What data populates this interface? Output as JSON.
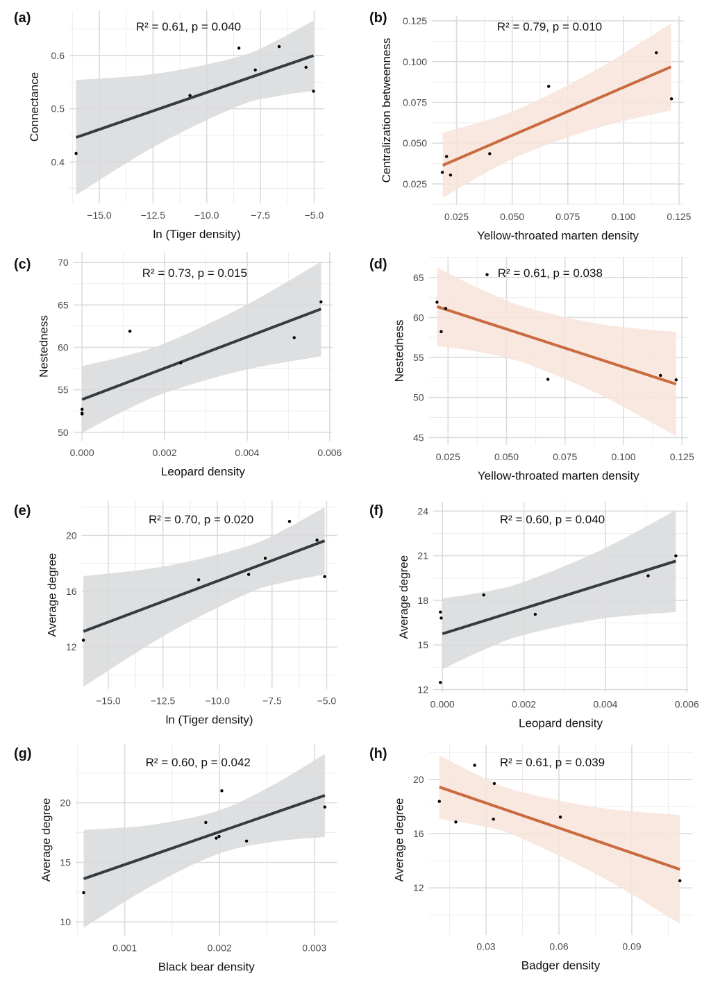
{
  "chart_data": [
    {
      "panel": "(a)",
      "type": "scatter",
      "annotation": "R² = 0.61, p = 0.040",
      "xlabel": "ln (Tiger density)",
      "ylabel": "Connectance",
      "xlim": [
        -16.39,
        -4.53
      ],
      "ylim": [
        0.322,
        0.685
      ],
      "x_ticks": [
        -15,
        -12.5,
        -10,
        -7.5,
        -5
      ],
      "x_tick_labels": [
        "−15.0",
        "−12.5",
        "−10.0",
        "−7.5",
        "−5.0"
      ],
      "y_ticks": [
        0.4,
        0.5,
        0.6
      ],
      "y_tick_labels": [
        "0.4",
        "0.5",
        "0.6"
      ],
      "points": [
        [
          -16.08,
          0.416
        ],
        [
          -10.78,
          0.525
        ],
        [
          -8.5,
          0.614
        ],
        [
          -7.74,
          0.573
        ],
        [
          -6.63,
          0.617
        ],
        [
          -5.38,
          0.578
        ],
        [
          -5.03,
          0.533
        ]
      ],
      "fit_line": {
        "x": [
          -16.08,
          -5.03
        ],
        "y": [
          0.446,
          0.6
        ]
      },
      "ci_band": {
        "x": [
          -16.08,
          -12.34,
          -8.59,
          -6.81,
          -5.03
        ],
        "lower": [
          0.338,
          0.431,
          0.504,
          0.523,
          0.534
        ],
        "upper": [
          0.554,
          0.566,
          0.597,
          0.627,
          0.666
        ]
      },
      "line_color": "#363b40",
      "band_color": "#d8d9da",
      "grid": true
    },
    {
      "panel": "(b)",
      "type": "scatter",
      "annotation": "R² = 0.79, p = 0.010",
      "xlabel": "Yellow-throated marten density",
      "ylabel": "Centralization betweenness",
      "xlim": [
        0.0139,
        0.1272
      ],
      "ylim": [
        0.0122,
        0.128
      ],
      "x_ticks": [
        0.025,
        0.05,
        0.075,
        0.1,
        0.125
      ],
      "x_tick_labels": [
        "0.025",
        "0.050",
        "0.075",
        "0.100",
        "0.125"
      ],
      "y_ticks": [
        0.025,
        0.05,
        0.075,
        0.1,
        0.125
      ],
      "y_tick_labels": [
        "0.025",
        "0.050",
        "0.075",
        "0.100",
        "0.125"
      ],
      "points": [
        [
          0.0186,
          0.0321
        ],
        [
          0.0205,
          0.0418
        ],
        [
          0.0223,
          0.0304
        ],
        [
          0.0399,
          0.0435
        ],
        [
          0.0664,
          0.0848
        ],
        [
          0.1148,
          0.1054
        ],
        [
          0.1216,
          0.0772
        ]
      ],
      "fit_line": {
        "x": [
          0.0188,
          0.1214
        ],
        "y": [
          0.0364,
          0.0968
        ]
      },
      "ci_band": {
        "x": [
          0.0188,
          0.03825,
          0.0577,
          0.08955,
          0.1214
        ],
        "lower": [
          0.0164,
          0.0319,
          0.0448,
          0.0598,
          0.0701
        ],
        "upper": [
          0.0564,
          0.0639,
          0.0738,
          0.0964,
          0.1235
        ]
      },
      "line_color": "#c96a3f",
      "band_color": "#f7e4da",
      "grid": true
    },
    {
      "panel": "(c)",
      "type": "scatter",
      "annotation": "R² = 0.73, p = 0.015",
      "xlabel": "Leopard density",
      "ylabel": "Nestedness",
      "xlim": [
        -0.00021,
        0.00607
      ],
      "ylim": [
        49.0,
        71.24
      ],
      "x_ticks": [
        0,
        0.002,
        0.004,
        0.006
      ],
      "x_tick_labels": [
        "0.000",
        "0.002",
        "0.004",
        "0.006"
      ],
      "y_ticks": [
        50,
        55,
        60,
        65,
        70
      ],
      "y_tick_labels": [
        "50",
        "55",
        "60",
        "65",
        "70"
      ],
      "points": [
        [
          0,
          52.7
        ],
        [
          0,
          52.25
        ],
        [
          0,
          52.15
        ],
        [
          0.00116,
          61.9
        ],
        [
          0.00239,
          58.17
        ],
        [
          0.00514,
          61.15
        ],
        [
          0.00579,
          65.36
        ]
      ],
      "fit_line": {
        "x": [
          0,
          0.00579
        ],
        "y": [
          53.86,
          64.52
        ]
      },
      "ci_band": {
        "x": [
          0,
          0.001035,
          0.00207,
          0.00393,
          0.00579
        ],
        "lower": [
          49.92,
          52.56,
          54.74,
          57.33,
          58.95
        ],
        "upper": [
          57.8,
          58.98,
          60.6,
          64.87,
          70.09
        ]
      },
      "line_color": "#363b40",
      "band_color": "#d8d9da",
      "grid": true
    },
    {
      "panel": "(d)",
      "type": "scatter",
      "annotation": "R² = 0.61, p = 0.038",
      "xlabel": "Yellow-throated marten density",
      "ylabel": "Nestedness",
      "xlim": [
        0.0168,
        0.1276
      ],
      "ylim": [
        44.08,
        67.58
      ],
      "x_ticks": [
        0.025,
        0.05,
        0.075,
        0.1,
        0.125
      ],
      "x_tick_labels": [
        "0.025",
        "0.050",
        "0.075",
        "0.100",
        "0.125"
      ],
      "y_ticks": [
        45,
        50,
        55,
        60,
        65
      ],
      "y_tick_labels": [
        "45",
        "50",
        "55",
        "60",
        "65"
      ],
      "points": [
        [
          0.0203,
          61.91
        ],
        [
          0.024,
          61.14
        ],
        [
          0.0221,
          58.23
        ],
        [
          0.0417,
          65.35
        ],
        [
          0.0677,
          52.27
        ],
        [
          0.1158,
          52.76
        ],
        [
          0.1225,
          52.21
        ]
      ],
      "fit_line": {
        "x": [
          0.0203,
          0.1225
        ],
        "y": [
          61.36,
          51.68
        ]
      },
      "ci_band": {
        "x": [
          0.0203,
          0.03975,
          0.0592,
          0.09085,
          0.1225
        ],
        "lower": [
          56.47,
          55.6,
          54.14,
          50.21,
          45.16
        ],
        "upper": [
          66.25,
          63.44,
          61.22,
          59.15,
          58.2
        ]
      },
      "line_color": "#c96a3f",
      "band_color": "#f7e4da",
      "grid": true
    },
    {
      "panel": "(e)",
      "type": "scatter",
      "annotation": "R² = 0.70, p = 0.020",
      "xlabel": "ln (Tiger density)",
      "ylabel": "Average degree",
      "xlim": [
        -16.22,
        -4.52
      ],
      "ylim": [
        9.0,
        22.47
      ],
      "x_ticks": [
        -15,
        -12.5,
        -10,
        -7.5,
        -5
      ],
      "x_tick_labels": [
        "−15.0",
        "−12.5",
        "−10.0",
        "−7.5",
        "−5.0"
      ],
      "y_ticks": [
        12,
        16,
        20
      ],
      "y_tick_labels": [
        "12",
        "16",
        "20"
      ],
      "points": [
        [
          -16.14,
          12.49
        ],
        [
          -10.86,
          16.82
        ],
        [
          -8.57,
          17.2
        ],
        [
          -7.81,
          18.36
        ],
        [
          -6.7,
          21.0
        ],
        [
          -5.44,
          19.66
        ],
        [
          -5.09,
          17.05
        ]
      ],
      "fit_line": {
        "x": [
          -16.14,
          -5.09
        ],
        "y": [
          13.12,
          19.61
        ]
      },
      "ci_band": {
        "x": [
          -16.14,
          -12.4,
          -8.66,
          -6.875,
          -5.09
        ],
        "lower": [
          9.16,
          12.85,
          15.81,
          16.66,
          17.2
        ],
        "upper": [
          17.08,
          17.79,
          19.21,
          20.46,
          22.02
        ]
      },
      "line_color": "#363b40",
      "band_color": "#d8d9da",
      "grid": true
    },
    {
      "panel": "(f)",
      "type": "scatter",
      "annotation": "R² = 0.60, p = 0.040",
      "xlabel": "Leopard density",
      "ylabel": "Average degree",
      "xlim": [
        -0.000225,
        0.00603
      ],
      "ylim": [
        11.81,
        24.62
      ],
      "x_ticks": [
        0,
        0.002,
        0.004,
        0.006
      ],
      "x_tick_labels": [
        "0.000",
        "0.002",
        "0.004",
        "0.006"
      ],
      "y_ticks": [
        12,
        15,
        18,
        21,
        24
      ],
      "y_tick_labels": [
        "12",
        "15",
        "18",
        "21",
        "24"
      ],
      "points": [
        [
          -5e-05,
          17.21
        ],
        [
          -3e-05,
          16.81
        ],
        [
          -5e-05,
          12.48
        ],
        [
          0.001014,
          18.36
        ],
        [
          0.002278,
          17.06
        ],
        [
          0.00505,
          19.65
        ],
        [
          0.00573,
          20.99
        ]
      ],
      "fit_line": {
        "x": [
          0,
          0.00573
        ],
        "y": [
          15.75,
          20.64
        ]
      },
      "ci_band": {
        "x": [
          0,
          0.001005,
          0.00201,
          0.00387,
          0.00573
        ],
        "lower": [
          13.37,
          14.66,
          15.68,
          16.75,
          17.22
        ],
        "upper": [
          18.13,
          18.56,
          19.25,
          21.35,
          24.06
        ]
      },
      "line_color": "#363b40",
      "band_color": "#d8d9da",
      "grid": true
    },
    {
      "panel": "(g)",
      "type": "scatter",
      "annotation": "R² = 0.60, p = 0.042",
      "xlabel": "Black bear density",
      "ylabel": "Average degree",
      "xlim": [
        0.000483,
        0.00324
      ],
      "ylim": [
        8.83,
        24.95
      ],
      "x_ticks": [
        0.001,
        0.002,
        0.003
      ],
      "x_tick_labels": [
        "0.001",
        "0.002",
        "0.003"
      ],
      "y_ticks": [
        10,
        15,
        20
      ],
      "y_tick_labels": [
        "10",
        "15",
        "20"
      ],
      "points": [
        [
          0.000567,
          12.46
        ],
        [
          0.001855,
          18.35
        ],
        [
          0.001966,
          17.03
        ],
        [
          0.001995,
          17.18
        ],
        [
          0.002024,
          21.01
        ],
        [
          0.002285,
          16.79
        ],
        [
          0.003111,
          19.65
        ]
      ],
      "fit_line": {
        "x": [
          0.000567,
          0.003111
        ],
        "y": [
          13.62,
          20.62
        ]
      },
      "ci_band": {
        "x": [
          0.000567,
          0.00127,
          0.001972,
          0.002542,
          0.003111
        ],
        "lower": [
          9.52,
          12.96,
          15.67,
          16.7,
          17.13
        ],
        "upper": [
          17.72,
          18.14,
          19.31,
          21.4,
          24.11
        ]
      },
      "line_color": "#363b40",
      "band_color": "#d8d9da",
      "grid": true
    },
    {
      "panel": "(h)",
      "type": "scatter",
      "annotation": "R² = 0.61, p = 0.039",
      "xlabel": "Badger density",
      "ylabel": "Average degree",
      "xlim": [
        0.00643,
        0.115
      ],
      "ylim": [
        8.54,
        22.56
      ],
      "x_ticks": [
        0.03,
        0.06,
        0.09
      ],
      "x_tick_labels": [
        "0.03",
        "0.06",
        "0.09"
      ],
      "y_ticks": [
        12,
        16,
        20
      ],
      "y_tick_labels": [
        "12",
        "16",
        "20"
      ],
      "points": [
        [
          0.01077,
          18.39
        ],
        [
          0.01754,
          16.87
        ],
        [
          0.02529,
          21.06
        ],
        [
          0.0334,
          19.71
        ],
        [
          0.03303,
          17.08
        ],
        [
          0.06057,
          17.23
        ],
        [
          0.1098,
          12.53
        ]
      ],
      "fit_line": {
        "x": [
          0.01077,
          0.1098
        ],
        "y": [
          19.45,
          13.37
        ]
      },
      "ci_band": {
        "x": [
          0.01077,
          0.02613,
          0.04149,
          0.07565,
          0.1098
        ],
        "lower": [
          17.1,
          16.64,
          15.88,
          12.99,
          9.36
        ],
        "upper": [
          21.8,
          20.38,
          19.24,
          17.95,
          17.38
        ]
      },
      "line_color": "#c96a3f",
      "band_color": "#f7e4da",
      "grid": true
    }
  ]
}
